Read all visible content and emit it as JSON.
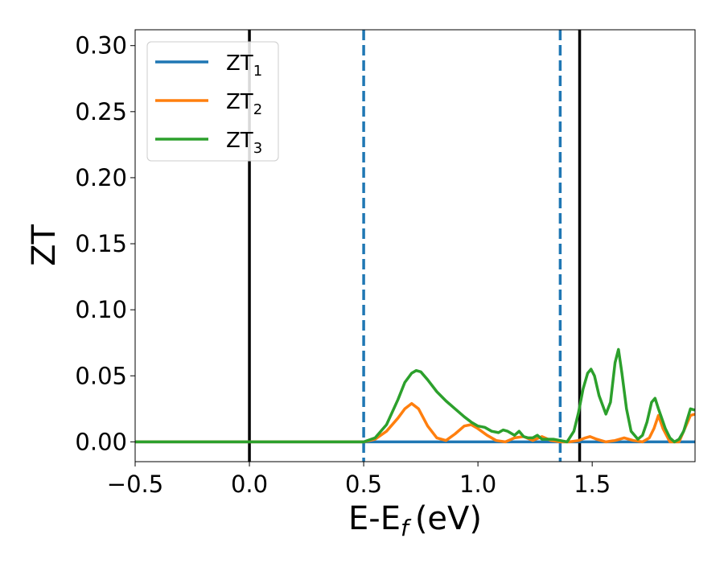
{
  "chart_data": {
    "type": "line",
    "xlabel": "E-E",
    "xlabel_sub": "f",
    "xlabel_unit": "(eV)",
    "ylabel": "ZT",
    "xlim": [
      -0.5,
      1.95
    ],
    "ylim": [
      -0.015,
      0.312
    ],
    "x_ticks": [
      -0.5,
      0.0,
      0.5,
      1.0,
      1.5
    ],
    "x_tick_labels": [
      "−0.5",
      "0.0",
      "0.5",
      "1.0",
      "1.5"
    ],
    "y_ticks": [
      0.0,
      0.05,
      0.1,
      0.15,
      0.2,
      0.25,
      0.3
    ],
    "y_tick_labels": [
      "0.00",
      "0.05",
      "0.10",
      "0.15",
      "0.20",
      "0.25",
      "0.30"
    ],
    "grid": false,
    "legend_placement": "top-left",
    "vertical_lines": [
      {
        "x": 0.0,
        "style": "solid",
        "color": "#000000"
      },
      {
        "x": 0.5,
        "style": "dashed",
        "color": "#1f77b4"
      },
      {
        "x": 1.36,
        "style": "dashed",
        "color": "#1f77b4"
      },
      {
        "x": 1.445,
        "style": "solid",
        "color": "#000000"
      }
    ],
    "series": [
      {
        "name": "ZT",
        "name_sub": "1",
        "color": "#1f77b4",
        "x": [
          -0.5,
          1.95
        ],
        "y": [
          0.0,
          0.0
        ]
      },
      {
        "name": "ZT",
        "name_sub": "2",
        "color": "#ff7f0e",
        "x": [
          -0.5,
          0.5,
          0.55,
          0.6,
          0.65,
          0.68,
          0.71,
          0.74,
          0.78,
          0.82,
          0.86,
          0.9,
          0.94,
          0.97,
          1.0,
          1.04,
          1.08,
          1.12,
          1.16,
          1.2,
          1.24,
          1.28,
          1.32,
          1.36,
          1.4,
          1.44,
          1.47,
          1.49,
          1.52,
          1.56,
          1.6,
          1.64,
          1.68,
          1.72,
          1.75,
          1.77,
          1.79,
          1.81,
          1.84,
          1.88,
          1.9,
          1.93,
          1.95
        ],
        "y": [
          0.0,
          0.0,
          0.002,
          0.008,
          0.018,
          0.025,
          0.029,
          0.025,
          0.012,
          0.003,
          0.001,
          0.006,
          0.012,
          0.013,
          0.01,
          0.005,
          0.001,
          0.0,
          0.003,
          0.004,
          0.001,
          0.004,
          0.001,
          0.0,
          0.0,
          0.001,
          0.003,
          0.004,
          0.002,
          0.0,
          0.001,
          0.003,
          0.001,
          0.0,
          0.003,
          0.01,
          0.02,
          0.01,
          0.0,
          0.0,
          0.008,
          0.02,
          0.021
        ]
      },
      {
        "name": "ZT",
        "name_sub": "3",
        "color": "#2ca02c",
        "x": [
          -0.5,
          0.5,
          0.55,
          0.6,
          0.65,
          0.68,
          0.71,
          0.73,
          0.75,
          0.78,
          0.82,
          0.86,
          0.9,
          0.94,
          0.97,
          1.0,
          1.03,
          1.06,
          1.09,
          1.11,
          1.13,
          1.16,
          1.18,
          1.2,
          1.22,
          1.24,
          1.26,
          1.28,
          1.3,
          1.33,
          1.36,
          1.39,
          1.42,
          1.44,
          1.46,
          1.48,
          1.495,
          1.51,
          1.53,
          1.56,
          1.58,
          1.6,
          1.615,
          1.63,
          1.65,
          1.67,
          1.7,
          1.72,
          1.74,
          1.76,
          1.775,
          1.79,
          1.8,
          1.82,
          1.84,
          1.86,
          1.88,
          1.9,
          1.93,
          1.95
        ],
        "y": [
          0.0,
          0.0,
          0.003,
          0.013,
          0.032,
          0.045,
          0.052,
          0.054,
          0.053,
          0.047,
          0.038,
          0.031,
          0.025,
          0.019,
          0.015,
          0.012,
          0.011,
          0.008,
          0.007,
          0.009,
          0.008,
          0.005,
          0.008,
          0.004,
          0.003,
          0.003,
          0.005,
          0.002,
          0.002,
          0.002,
          0.001,
          0.0,
          0.008,
          0.022,
          0.04,
          0.052,
          0.055,
          0.05,
          0.035,
          0.021,
          0.03,
          0.06,
          0.07,
          0.052,
          0.025,
          0.008,
          0.002,
          0.005,
          0.015,
          0.03,
          0.033,
          0.025,
          0.02,
          0.01,
          0.003,
          0.0,
          0.002,
          0.008,
          0.025,
          0.024
        ]
      }
    ]
  }
}
